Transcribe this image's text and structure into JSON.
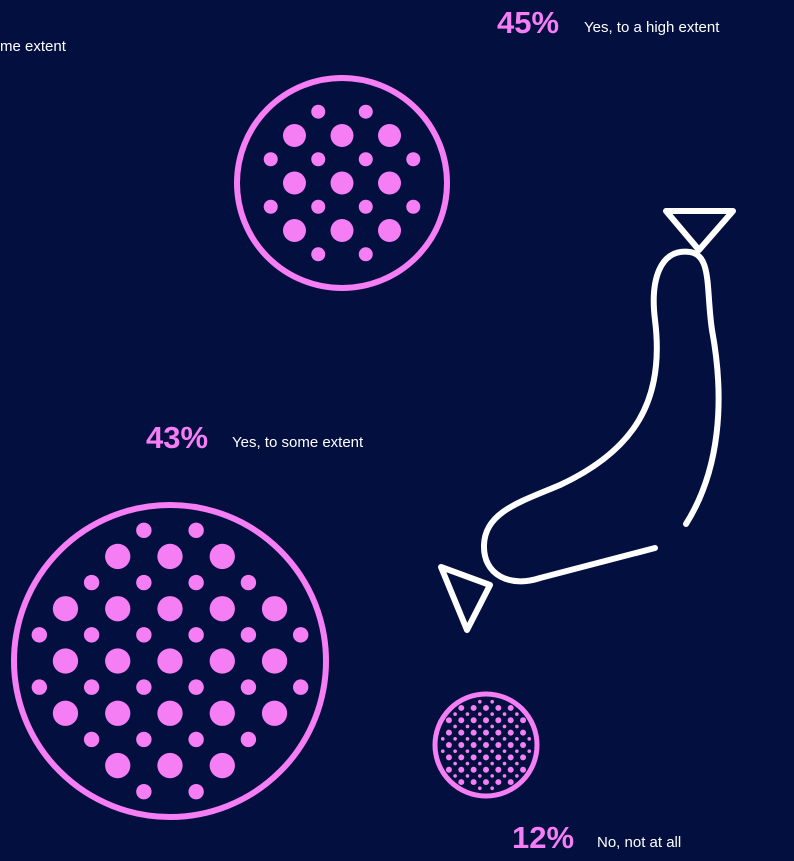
{
  "chart_data": {
    "type": "pictogram",
    "categories": [
      "Yes, to a high extent",
      "Yes, to some extent",
      "No, not at all"
    ],
    "values": [
      45,
      43,
      12
    ],
    "value_labels": [
      "45%",
      "43%",
      "12%"
    ],
    "partial_label": "me extent",
    "color": "#f57ef5"
  }
}
